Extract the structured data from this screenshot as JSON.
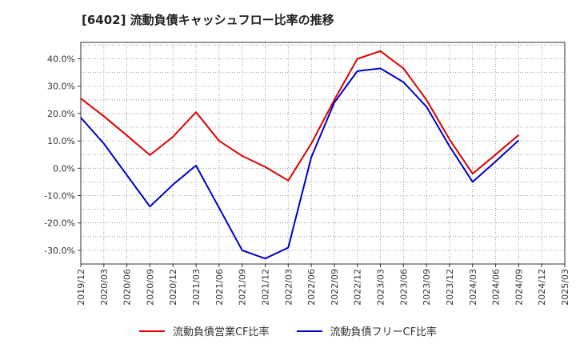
{
  "chart_data": {
    "type": "line",
    "title": "[6402]  流動負債キャッシュフロー比率の推移",
    "xlabel": "",
    "ylabel": "",
    "ylim": [
      -35,
      46
    ],
    "yticks": [
      -30,
      -20,
      -10,
      0,
      10,
      20,
      30,
      40
    ],
    "y_tick_format": "percent_1dp",
    "grid": true,
    "legend_position": "bottom",
    "x": [
      "2019/12",
      "2020/03",
      "2020/06",
      "2020/09",
      "2020/12",
      "2021/03",
      "2021/06",
      "2021/09",
      "2021/12",
      "2022/03",
      "2022/06",
      "2022/09",
      "2022/12",
      "2023/03",
      "2023/06",
      "2023/09",
      "2023/12",
      "2024/03",
      "2024/06",
      "2024/09",
      "2024/12",
      "2025/03"
    ],
    "series": [
      {
        "name": "流動負債営業CF比率",
        "color": "#dd0000",
        "values": [
          25.5,
          19.0,
          12.0,
          4.8,
          11.5,
          20.5,
          10.0,
          4.5,
          0.5,
          -4.5,
          9.0,
          25.0,
          40.0,
          42.8,
          36.5,
          25.0,
          10.5,
          -2.0,
          5.0,
          12.2,
          null,
          null
        ]
      },
      {
        "name": "流動負債フリーCF比率",
        "color": "#0000cc",
        "values": [
          18.5,
          9.0,
          -2.5,
          -14.0,
          -6.0,
          1.0,
          -14.5,
          -30.0,
          -33.0,
          -29.0,
          4.0,
          24.0,
          35.5,
          36.5,
          31.5,
          22.5,
          8.0,
          -5.0,
          2.5,
          10.2,
          null,
          null
        ]
      }
    ]
  }
}
